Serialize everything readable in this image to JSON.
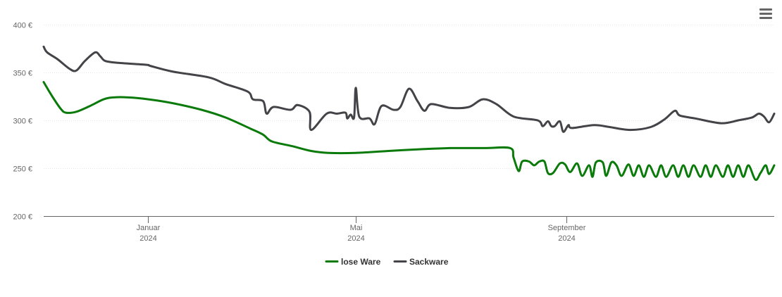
{
  "chart_data": {
    "type": "line",
    "title": "",
    "xlabel": "",
    "ylabel": "",
    "ylim": [
      200,
      400
    ],
    "y_ticks": [
      200,
      250,
      300,
      350,
      400
    ],
    "y_unit": "€",
    "x_range": [
      "2023-11-01",
      "2024-12-31"
    ],
    "x_ticks": [
      {
        "date": "2024-01-01",
        "label": "Januar",
        "year": "2024"
      },
      {
        "date": "2024-05-01",
        "label": "Mai",
        "year": "2024"
      },
      {
        "date": "2024-09-01",
        "label": "September",
        "year": "2024"
      }
    ],
    "grid": "horizontal",
    "legend_position": "bottom-center",
    "series": [
      {
        "name": "lose Ware",
        "color": "#0a7a0a",
        "points": [
          [
            "2023-11-01",
            340
          ],
          [
            "2023-11-06",
            325
          ],
          [
            "2023-11-11",
            312
          ],
          [
            "2023-11-14",
            308
          ],
          [
            "2023-11-20",
            309
          ],
          [
            "2023-11-28",
            315
          ],
          [
            "2023-12-06",
            322
          ],
          [
            "2023-12-12",
            324
          ],
          [
            "2023-12-20",
            324
          ],
          [
            "2024-01-01",
            322
          ],
          [
            "2024-01-15",
            318
          ],
          [
            "2024-02-01",
            311
          ],
          [
            "2024-02-15",
            303
          ],
          [
            "2024-03-01",
            291
          ],
          [
            "2024-03-08",
            285
          ],
          [
            "2024-03-13",
            278
          ],
          [
            "2024-03-25",
            273
          ],
          [
            "2024-04-05",
            268
          ],
          [
            "2024-04-15",
            266
          ],
          [
            "2024-05-01",
            266
          ],
          [
            "2024-05-20",
            268
          ],
          [
            "2024-06-10",
            270
          ],
          [
            "2024-06-25",
            271
          ],
          [
            "2024-07-15",
            271
          ],
          [
            "2024-07-30",
            271
          ],
          [
            "2024-08-01",
            261
          ],
          [
            "2024-08-04",
            247
          ],
          [
            "2024-08-06",
            257
          ],
          [
            "2024-08-10",
            257
          ],
          [
            "2024-08-13",
            253
          ],
          [
            "2024-08-16",
            257
          ],
          [
            "2024-08-19",
            257
          ],
          [
            "2024-08-21",
            245
          ],
          [
            "2024-08-24",
            245
          ],
          [
            "2024-08-28",
            255
          ],
          [
            "2024-08-31",
            254
          ],
          [
            "2024-09-03",
            246
          ],
          [
            "2024-09-07",
            255
          ],
          [
            "2024-09-10",
            242
          ],
          [
            "2024-09-14",
            253
          ],
          [
            "2024-09-16",
            241
          ],
          [
            "2024-09-18",
            256
          ],
          [
            "2024-09-22",
            256
          ],
          [
            "2024-09-24",
            242
          ],
          [
            "2024-09-27",
            256
          ],
          [
            "2024-09-30",
            253
          ],
          [
            "2024-10-03",
            242
          ],
          [
            "2024-10-07",
            254
          ],
          [
            "2024-10-10",
            242
          ],
          [
            "2024-10-13",
            253
          ],
          [
            "2024-10-16",
            241
          ],
          [
            "2024-10-19",
            253
          ],
          [
            "2024-10-23",
            241
          ],
          [
            "2024-10-26",
            253
          ],
          [
            "2024-10-29",
            241
          ],
          [
            "2024-11-02",
            253
          ],
          [
            "2024-11-05",
            241
          ],
          [
            "2024-11-08",
            253
          ],
          [
            "2024-11-11",
            241
          ],
          [
            "2024-11-14",
            253
          ],
          [
            "2024-11-18",
            241
          ],
          [
            "2024-11-21",
            253
          ],
          [
            "2024-11-24",
            241
          ],
          [
            "2024-11-27",
            253
          ],
          [
            "2024-12-01",
            241
          ],
          [
            "2024-12-04",
            253
          ],
          [
            "2024-12-07",
            241
          ],
          [
            "2024-12-10",
            253
          ],
          [
            "2024-12-13",
            241
          ],
          [
            "2024-12-16",
            253
          ],
          [
            "2024-12-20",
            238
          ],
          [
            "2024-12-23",
            245
          ],
          [
            "2024-12-26",
            253
          ],
          [
            "2024-12-28",
            244
          ],
          [
            "2024-12-31",
            253
          ]
        ]
      },
      {
        "name": "Sackware",
        "color": "#434348",
        "points": [
          [
            "2023-11-01",
            377
          ],
          [
            "2023-11-03",
            371
          ],
          [
            "2023-11-09",
            364
          ],
          [
            "2023-11-16",
            354
          ],
          [
            "2023-11-20",
            352
          ],
          [
            "2023-11-25",
            362
          ],
          [
            "2023-12-01",
            371
          ],
          [
            "2023-12-04",
            367
          ],
          [
            "2023-12-07",
            362
          ],
          [
            "2023-12-15",
            360
          ],
          [
            "2023-12-31",
            358
          ],
          [
            "2024-01-02",
            357
          ],
          [
            "2024-01-15",
            351
          ],
          [
            "2024-02-05",
            345
          ],
          [
            "2024-02-15",
            338
          ],
          [
            "2024-02-28",
            330
          ],
          [
            "2024-03-02",
            322
          ],
          [
            "2024-03-08",
            320
          ],
          [
            "2024-03-10",
            307
          ],
          [
            "2024-03-14",
            314
          ],
          [
            "2024-03-24",
            311
          ],
          [
            "2024-03-28",
            316
          ],
          [
            "2024-04-04",
            309
          ],
          [
            "2024-04-05",
            290
          ],
          [
            "2024-04-14",
            307
          ],
          [
            "2024-04-20",
            307
          ],
          [
            "2024-04-25",
            308
          ],
          [
            "2024-04-26",
            302
          ],
          [
            "2024-04-28",
            306
          ],
          [
            "2024-04-30",
            303
          ],
          [
            "2024-05-01",
            334
          ],
          [
            "2024-05-03",
            304
          ],
          [
            "2024-05-09",
            302
          ],
          [
            "2024-05-12",
            296
          ],
          [
            "2024-05-16",
            315
          ],
          [
            "2024-05-23",
            311
          ],
          [
            "2024-05-27",
            314
          ],
          [
            "2024-06-01",
            333
          ],
          [
            "2024-06-06",
            320
          ],
          [
            "2024-06-10",
            310
          ],
          [
            "2024-06-14",
            317
          ],
          [
            "2024-06-25",
            313
          ],
          [
            "2024-07-06",
            314
          ],
          [
            "2024-07-14",
            322
          ],
          [
            "2024-07-22",
            317
          ],
          [
            "2024-08-01",
            304
          ],
          [
            "2024-08-15",
            300
          ],
          [
            "2024-08-18",
            294
          ],
          [
            "2024-08-21",
            299
          ],
          [
            "2024-08-23",
            294
          ],
          [
            "2024-08-25",
            294
          ],
          [
            "2024-08-28",
            299
          ],
          [
            "2024-08-30",
            288
          ],
          [
            "2024-09-02",
            295
          ],
          [
            "2024-09-04",
            292
          ],
          [
            "2024-09-17",
            295
          ],
          [
            "2024-09-26",
            293
          ],
          [
            "2024-10-08",
            290
          ],
          [
            "2024-10-20",
            293
          ],
          [
            "2024-10-28",
            301
          ],
          [
            "2024-11-03",
            310
          ],
          [
            "2024-11-06",
            305
          ],
          [
            "2024-11-15",
            302
          ],
          [
            "2024-11-30",
            297
          ],
          [
            "2024-12-10",
            300
          ],
          [
            "2024-12-18",
            303
          ],
          [
            "2024-12-22",
            307
          ],
          [
            "2024-12-25",
            304
          ],
          [
            "2024-12-28",
            298
          ],
          [
            "2024-12-31",
            307
          ]
        ]
      }
    ]
  }
}
